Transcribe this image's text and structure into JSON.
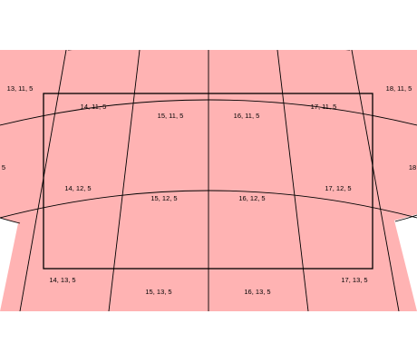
{
  "map": {
    "tile_fill": "#ffb3b3",
    "line_color": "#000000",
    "background": "#ffffff",
    "tiles": [
      {
        "x": 13,
        "y": 11,
        "z": 5,
        "label": "13, 11, 5"
      },
      {
        "x": 14,
        "y": 11,
        "z": 5,
        "label": "14, 11, 5"
      },
      {
        "x": 15,
        "y": 11,
        "z": 5,
        "label": "15, 11, 5"
      },
      {
        "x": 16,
        "y": 11,
        "z": 5,
        "label": "16, 11, 5"
      },
      {
        "x": 17,
        "y": 11,
        "z": 5,
        "label": "17, 11, 5"
      },
      {
        "x": 18,
        "y": 11,
        "z": 5,
        "label": "18, 11, 5"
      },
      {
        "x": 13,
        "y": 12,
        "z": 5,
        "label": "5"
      },
      {
        "x": 14,
        "y": 12,
        "z": 5,
        "label": "14, 12, 5"
      },
      {
        "x": 15,
        "y": 12,
        "z": 5,
        "label": "15, 12, 5"
      },
      {
        "x": 16,
        "y": 12,
        "z": 5,
        "label": "16, 12, 5"
      },
      {
        "x": 17,
        "y": 12,
        "z": 5,
        "label": "17, 12, 5"
      },
      {
        "x": 18,
        "y": 12,
        "z": 5,
        "label": "18"
      },
      {
        "x": 14,
        "y": 13,
        "z": 5,
        "label": "14, 13, 5"
      },
      {
        "x": 15,
        "y": 13,
        "z": 5,
        "label": "15, 13, 5"
      },
      {
        "x": 16,
        "y": 13,
        "z": 5,
        "label": "16, 13, 5"
      },
      {
        "x": 17,
        "y": 13,
        "z": 5,
        "label": "17, 13, 5"
      }
    ]
  }
}
